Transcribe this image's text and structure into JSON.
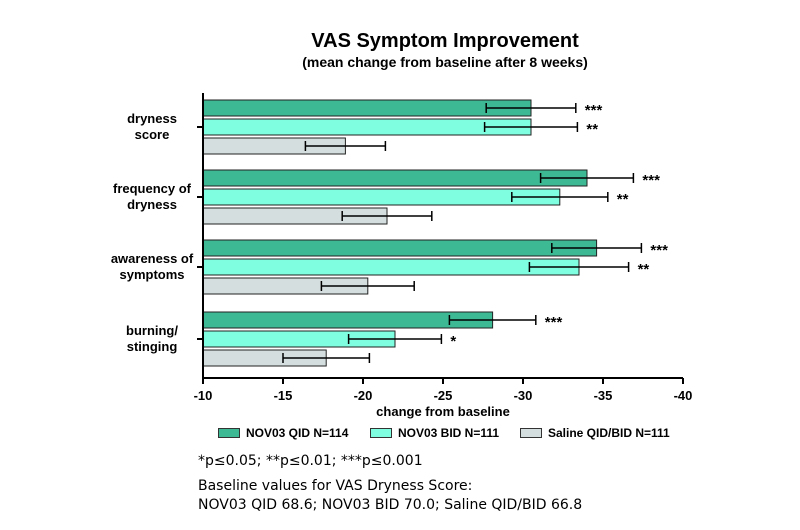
{
  "chart_data": {
    "type": "bar",
    "orientation": "horizontal",
    "title": "VAS Symptom Improvement",
    "subtitle": "(mean change from baseline after 8 weeks)",
    "xlabel": "change from baseline",
    "ylabel": "",
    "xlim": [
      -10,
      -40
    ],
    "xticks": [
      -10,
      -15,
      -20,
      -25,
      -30,
      -35,
      -40
    ],
    "categories": [
      "dryness score",
      "frequency of dryness",
      "awareness of symptoms",
      "burning/ stinging"
    ],
    "category_lines": [
      [
        "dryness",
        "score"
      ],
      [
        "frequency of",
        "dryness"
      ],
      [
        "awareness of",
        "symptoms"
      ],
      [
        "burning/",
        "stinging"
      ]
    ],
    "series": [
      {
        "name": "NOV03 QID N=114",
        "color": "#3DBA94",
        "values": [
          -30.5,
          -34.0,
          -34.6,
          -28.1
        ],
        "errors": [
          2.8,
          2.9,
          2.8,
          2.7
        ],
        "significance": [
          "***",
          "***",
          "***",
          "***"
        ]
      },
      {
        "name": "NOV03 BID N=111",
        "color": "#7FFFE0",
        "values": [
          -30.5,
          -32.3,
          -33.5,
          -22.0
        ],
        "errors": [
          2.9,
          3.0,
          3.1,
          2.9
        ],
        "significance": [
          "**",
          "**",
          "**",
          "*"
        ]
      },
      {
        "name": "Saline QID/BID N=111",
        "color": "#D4DEDE",
        "values": [
          -18.9,
          -21.5,
          -20.3,
          -17.7
        ],
        "errors": [
          2.5,
          2.8,
          2.9,
          2.7
        ],
        "significance": [
          "",
          "",
          "",
          ""
        ]
      }
    ],
    "grid": false,
    "legend_position": "bottom"
  },
  "notes": {
    "significance_key": "*p≤0.05; **p≤0.01; ***p≤0.001",
    "baseline_heading": "Baseline values for VAS Dryness Score:",
    "baseline_values": "NOV03 QID 68.6; NOV03 BID 70.0; Saline QID/BID 66.8"
  }
}
